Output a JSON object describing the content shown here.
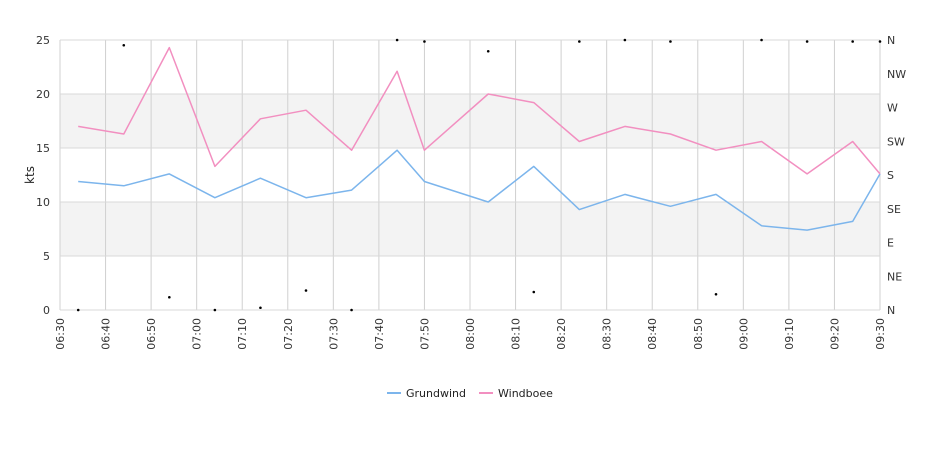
{
  "chart_data": {
    "type": "line",
    "ylabel": "kts",
    "ylim": [
      0,
      25
    ],
    "y_ticks": [
      "0",
      "5",
      "10",
      "15",
      "20",
      "25"
    ],
    "y2_ticks": [
      "N",
      "NE",
      "E",
      "SE",
      "S",
      "SW",
      "W",
      "NW",
      "N"
    ],
    "y2lim": [
      0,
      360
    ],
    "x_ticks": [
      "06:30",
      "06:40",
      "06:50",
      "07:00",
      "07:10",
      "07:20",
      "07:30",
      "07:40",
      "07:50",
      "08:00",
      "08:10",
      "08:20",
      "08:30",
      "08:40",
      "08:50",
      "09:00",
      "09:10",
      "09:20",
      "09:30"
    ],
    "x_range": [
      "06:30",
      "09:30"
    ],
    "grid": true,
    "alternating_bands": true,
    "legend_position": "bottom-center",
    "series": [
      {
        "name": "Grundwind",
        "color": "#7cb5ec",
        "x": [
          "06:34",
          "06:44",
          "06:54",
          "07:04",
          "07:14",
          "07:24",
          "07:34",
          "07:44",
          "07:50",
          "08:04",
          "08:14",
          "08:24",
          "08:34",
          "08:44",
          "08:54",
          "09:04",
          "09:14",
          "09:24",
          "09:30"
        ],
        "values": [
          11.9,
          11.5,
          12.6,
          10.4,
          12.2,
          10.4,
          11.1,
          14.8,
          11.9,
          10.0,
          13.3,
          9.3,
          10.7,
          9.6,
          10.7,
          7.8,
          7.4,
          8.2,
          12.6
        ]
      },
      {
        "name": "Windboee",
        "color": "#f28fc0",
        "x": [
          "06:34",
          "06:44",
          "06:54",
          "07:04",
          "07:14",
          "07:24",
          "07:34",
          "07:44",
          "07:50",
          "08:04",
          "08:14",
          "08:24",
          "08:34",
          "08:44",
          "08:54",
          "09:04",
          "09:14",
          "09:24",
          "09:30"
        ],
        "values": [
          17.0,
          16.3,
          24.3,
          13.3,
          17.7,
          18.5,
          14.8,
          22.1,
          14.8,
          20.0,
          19.2,
          15.6,
          17.0,
          16.3,
          14.8,
          15.6,
          12.6,
          15.6,
          12.6
        ]
      }
    ],
    "direction_series": {
      "x": [
        "06:34",
        "06:44",
        "06:54",
        "07:04",
        "07:14",
        "07:24",
        "07:34",
        "07:44",
        "07:50",
        "08:04",
        "08:14",
        "08:24",
        "08:34",
        "08:44",
        "08:54",
        "09:04",
        "09:14",
        "09:24",
        "09:30"
      ],
      "values": [
        0,
        353,
        17,
        0,
        3,
        26,
        0,
        360,
        358,
        345,
        24,
        358,
        360,
        358,
        21,
        360,
        358,
        358,
        358
      ]
    }
  }
}
